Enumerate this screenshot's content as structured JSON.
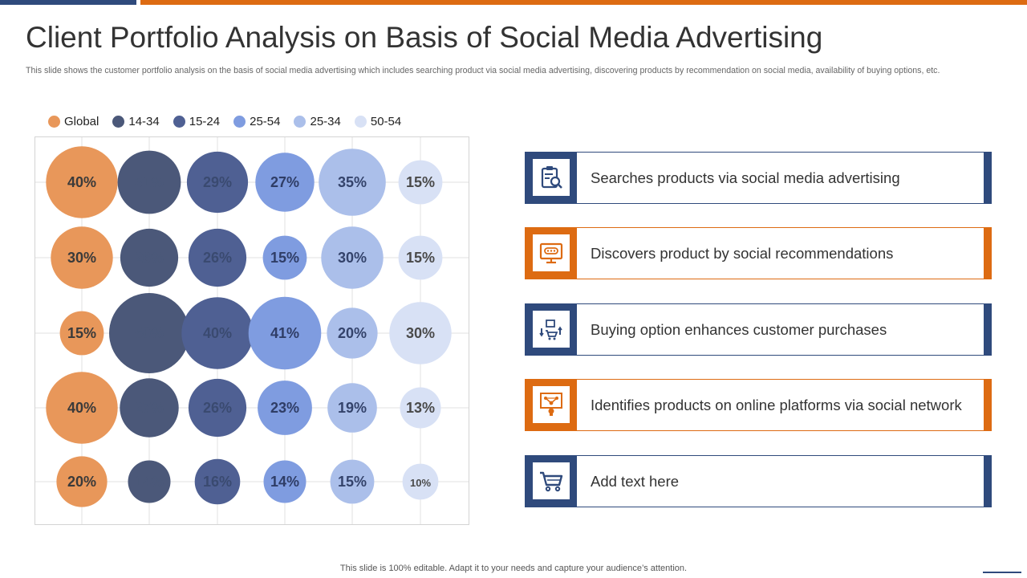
{
  "title": "Client Portfolio Analysis on Basis of Social Media Advertising",
  "subtitle": "This slide shows the customer portfolio analysis on the basis of social media advertising which includes searching product via social media advertising, discovering products by recommendation on social media, availability of buying options, etc.",
  "footer": "This slide is 100% editable. Adapt it to your needs and capture your audience’s attention.",
  "colors": {
    "navy": "#2f4a7c",
    "orange": "#dd6b12"
  },
  "chart_data": {
    "type": "bubble",
    "categories": [
      "Searches products via social media advertising",
      "Discovers product by social recommendations",
      "Buying option enhances customer purchases",
      "Identifies products on online platforms via social network",
      "Add text here"
    ],
    "series": [
      {
        "name": "Global",
        "color": "#e8975a",
        "values": [
          40,
          30,
          15,
          40,
          20
        ]
      },
      {
        "name": "14-34",
        "color": "#4b5879",
        "values": [
          31,
          26,
          50,
          27,
          14
        ]
      },
      {
        "name": "15-24",
        "color": "#4f6093",
        "values": [
          29,
          26,
          40,
          26,
          16
        ]
      },
      {
        "name": "25-54",
        "color": "#7f9ce0",
        "values": [
          27,
          15,
          41,
          23,
          14
        ]
      },
      {
        "name": "25-34",
        "color": "#abbfea",
        "values": [
          35,
          30,
          20,
          19,
          15
        ]
      },
      {
        "name": "50-54",
        "color": "#d8e1f5",
        "values": [
          15,
          15,
          30,
          13,
          10
        ]
      }
    ],
    "unit": "%",
    "grid": true,
    "legend_position": "top"
  },
  "features": [
    {
      "label": "Searches products via social media advertising",
      "icon": "clipboard-search-icon",
      "accent": "#2f4a7c"
    },
    {
      "label": "Discovers product by social recommendations",
      "icon": "monitor-icon",
      "accent": "#dd6b12"
    },
    {
      "label": "Buying option enhances customer purchases",
      "icon": "shopping-options-icon",
      "accent": "#2f4a7c"
    },
    {
      "label": "Identifies products on online platforms via social network",
      "icon": "network-lightbulb-icon",
      "accent": "#dd6b12"
    },
    {
      "label": "Add text here",
      "icon": "shopping-cart-icon",
      "accent": "#2f4a7c"
    }
  ]
}
